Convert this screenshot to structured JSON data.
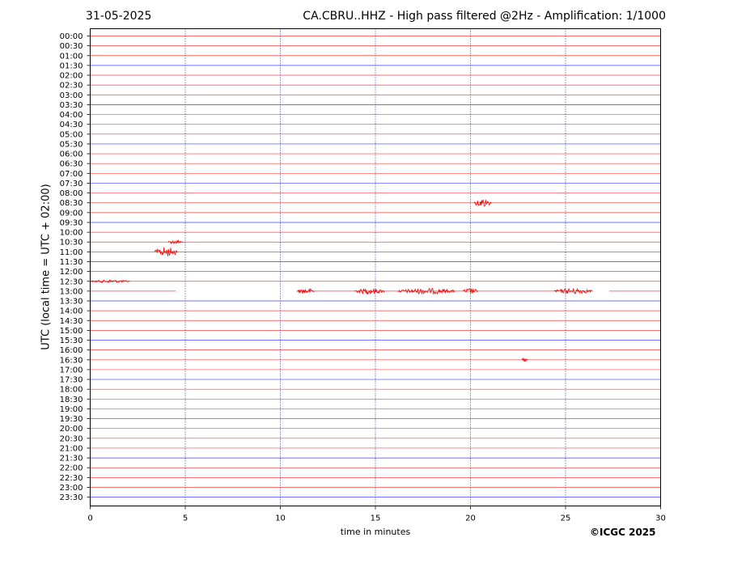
{
  "header": {
    "date": "31-05-2025",
    "title": "CA.CBRU..HHZ - High pass filtered @2Hz - Amplification: 1/1000"
  },
  "footer": {
    "copyright": "©ICGC 2025"
  },
  "colors": {
    "red": "#ff0000",
    "blue": "#0000ff",
    "grid": "#00007f",
    "frame": "#000000"
  },
  "chart_data": {
    "type": "line",
    "title": "CA.CBRU..HHZ - High pass filtered @2Hz - Amplification: 1/1000",
    "xlabel": "time in minutes",
    "ylabel": "UTC (local time = UTC + 02:00)",
    "xlim": [
      0,
      30
    ],
    "x_ticks": [
      0,
      5,
      10,
      15,
      20,
      25,
      30
    ],
    "x_grid": [
      5,
      10,
      15,
      20,
      25
    ],
    "x_grid_style": "dotted",
    "row_colors": [
      "red",
      "red",
      "red",
      "blue"
    ],
    "rows": [
      "00:00",
      "00:30",
      "01:00",
      "01:30",
      "02:00",
      "02:30",
      "03:00",
      "03:30",
      "04:00",
      "04:30",
      "05:00",
      "05:30",
      "06:00",
      "06:30",
      "07:00",
      "07:30",
      "08:00",
      "08:30",
      "09:00",
      "09:30",
      "10:00",
      "10:30",
      "11:00",
      "11:30",
      "12:00",
      "12:30",
      "13:00",
      "13:30",
      "14:00",
      "14:30",
      "15:00",
      "15:30",
      "16:00",
      "16:30",
      "17:00",
      "17:30",
      "18:00",
      "18:30",
      "19:00",
      "19:30",
      "20:00",
      "20:30",
      "21:00",
      "21:30",
      "22:00",
      "22:30",
      "23:00",
      "23:30"
    ],
    "events": [
      {
        "row": "08:30",
        "start": 20.2,
        "end": 21.1,
        "amplitude": 0.45
      },
      {
        "row": "10:30",
        "start": 4.1,
        "end": 4.9,
        "amplitude": 0.2
      },
      {
        "row": "11:00",
        "start": 3.4,
        "end": 4.6,
        "amplitude": 0.5
      },
      {
        "row": "12:30",
        "start": 0.0,
        "end": 2.1,
        "amplitude": 0.15
      },
      {
        "row": "13:00",
        "start": 10.9,
        "end": 11.8,
        "amplitude": 0.3
      },
      {
        "row": "13:00",
        "start": 13.9,
        "end": 15.5,
        "amplitude": 0.3
      },
      {
        "row": "13:00",
        "start": 16.2,
        "end": 19.2,
        "amplitude": 0.3
      },
      {
        "row": "13:00",
        "start": 19.6,
        "end": 20.4,
        "amplitude": 0.3
      },
      {
        "row": "13:00",
        "start": 24.4,
        "end": 26.4,
        "amplitude": 0.3
      },
      {
        "row": "16:30",
        "start": 22.7,
        "end": 23.0,
        "amplitude": 0.2
      }
    ],
    "gaps": [
      {
        "row": "13:00",
        "start": 4.5,
        "end": 10.85
      },
      {
        "row": "13:00",
        "start": 26.45,
        "end": 27.3
      }
    ],
    "grid": true,
    "legend": "none"
  }
}
